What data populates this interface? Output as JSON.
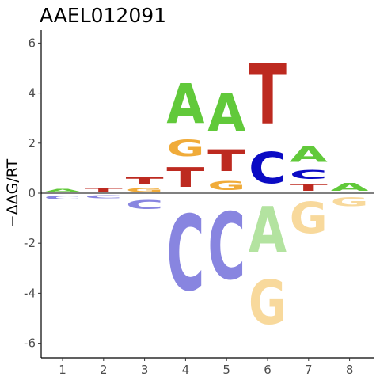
{
  "chart_data": {
    "type": "sequence-logo",
    "title": "AAEL012091",
    "ylabel": "−ΔΔG/RT",
    "xlabel": "",
    "ylim": [
      -6.5,
      6.5
    ],
    "yticks": [
      -6,
      -4,
      -2,
      0,
      2,
      4,
      6
    ],
    "positions": [
      1,
      2,
      3,
      4,
      5,
      6,
      7,
      8
    ],
    "colors": {
      "A": "#61c93a",
      "C": "#0b0bc4",
      "G": "#f0ab39",
      "T": "#bd2a20"
    },
    "negative_colors": {
      "A": "#b3e3a0",
      "C": "#8885e0",
      "G": "#f8d99c",
      "T": "#dd9590"
    },
    "stacks": [
      {
        "position": 1,
        "letters": [
          {
            "base": "A",
            "from": 0,
            "to": 0.2
          },
          {
            "base": "C",
            "from": -0.3,
            "to": -0.05
          }
        ]
      },
      {
        "position": 2,
        "letters": [
          {
            "base": "T",
            "from": 0,
            "to": 0.25
          },
          {
            "base": "C",
            "from": -0.25,
            "to": -0.05
          }
        ]
      },
      {
        "position": 3,
        "letters": [
          {
            "base": "G",
            "from": 0,
            "to": 0.25
          },
          {
            "base": "T",
            "from": 0.25,
            "to": 0.7
          },
          {
            "base": "C",
            "from": -0.75,
            "to": -0.15
          }
        ]
      },
      {
        "position": 4,
        "letters": [
          {
            "base": "T",
            "from": 0,
            "to": 1.25
          },
          {
            "base": "G",
            "from": 1.25,
            "to": 2.3
          },
          {
            "base": "A",
            "from": 2.3,
            "to": 4.85
          },
          {
            "base": "C",
            "from": -4.85,
            "to": 0
          }
        ]
      },
      {
        "position": 5,
        "letters": [
          {
            "base": "G",
            "from": 0,
            "to": 0.6
          },
          {
            "base": "T",
            "from": 0.6,
            "to": 2.0
          },
          {
            "base": "A",
            "from": 2.0,
            "to": 4.4
          },
          {
            "base": "C",
            "from": -4.3,
            "to": 0
          }
        ]
      },
      {
        "position": 6,
        "letters": [
          {
            "base": "C",
            "from": 0,
            "to": 2.0
          },
          {
            "base": "T",
            "from": 2.0,
            "to": 5.85
          },
          {
            "base": "A",
            "from": -2.95,
            "to": 0
          },
          {
            "base": "G",
            "from": -5.8,
            "to": -2.95
          }
        ]
      },
      {
        "position": 7,
        "letters": [
          {
            "base": "T",
            "from": 0,
            "to": 0.45
          },
          {
            "base": "C",
            "from": 0.45,
            "to": 1.05
          },
          {
            "base": "A",
            "from": 1.05,
            "to": 2.05
          },
          {
            "base": "G",
            "from": -2.0,
            "to": 0
          }
        ]
      },
      {
        "position": 8,
        "letters": [
          {
            "base": "A",
            "from": 0,
            "to": 0.5
          },
          {
            "base": "G",
            "from": -0.65,
            "to": -0.05
          }
        ]
      }
    ]
  }
}
